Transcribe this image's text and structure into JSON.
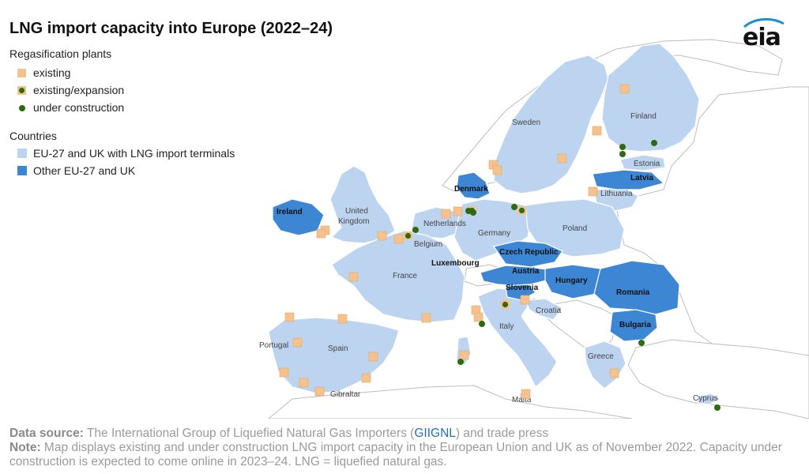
{
  "title": "LNG import capacity into Europe (2022–24)",
  "logo": "eia",
  "legend": {
    "plants_heading": "Regasification plants",
    "plants": [
      {
        "label": "existing",
        "type": "existing"
      },
      {
        "label": "existing/expansion",
        "type": "expansion"
      },
      {
        "label": "under construction",
        "type": "construction"
      }
    ],
    "countries_heading": "Countries",
    "countries": [
      {
        "label": "EU-27 and UK with LNG import terminals",
        "color": "#bdd4f1"
      },
      {
        "label": "Other EU-27 and UK",
        "color": "#3d86d4"
      }
    ]
  },
  "colors": {
    "terminal_country": "#bdd4f1",
    "other_country": "#3d86d4",
    "existing": "#f5c18c",
    "construction": "#2d6b12",
    "background": "#ffffff"
  },
  "countries": {
    "sweden": "Sweden",
    "finland": "Finland",
    "estonia": "Estonia",
    "latvia": "Latvia",
    "lithuania": "Lithuania",
    "denmark": "Denmark",
    "ireland": "Ireland",
    "united_kingdom": "United\nKingdom",
    "netherlands": "Netherlands",
    "belgium": "Belgium",
    "germany": "Germany",
    "poland": "Poland",
    "czech_republic": "Czech Republic",
    "luxembourg": "Luxembourg",
    "france": "France",
    "austria": "Austria",
    "hungary": "Hungary",
    "slovenia": "Slovenia",
    "romania": "Romania",
    "croatia": "Croatia",
    "bulgaria": "Bulgaria",
    "italy": "Italy",
    "portugal": "Portugal",
    "spain": "Spain",
    "greece": "Greece",
    "gibraltar": "Gibraltar",
    "malta": "Malta",
    "cyprus": "Cyprus"
  },
  "footer": {
    "source_label": "Data source:",
    "source_pre": " The International Group of Liquefied Natural Gas Importers (",
    "source_link": "GIIGNL",
    "source_post": ") and trade press",
    "note_label": "Note:",
    "note_text": " Map displays existing and under construction LNG import capacity in the European Union and UK as of November 2022. Capacity under construction is expected to come online in 2023–24. LNG = liquefied natural gas."
  }
}
